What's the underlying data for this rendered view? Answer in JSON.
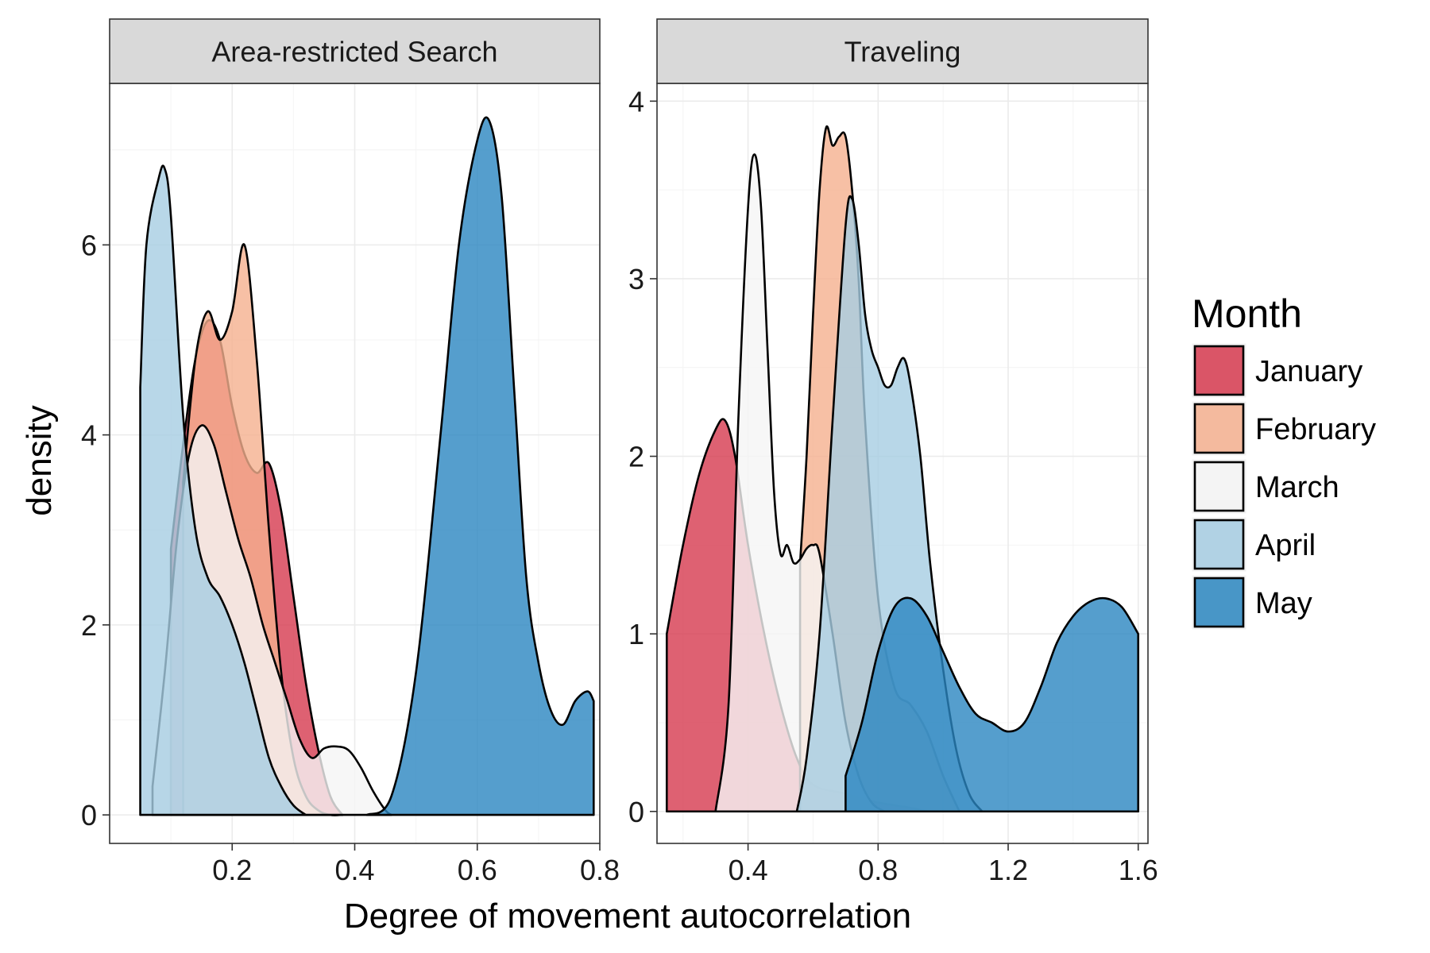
{
  "chart_data": {
    "type": "area",
    "xlabel": "Degree of movement autocorrelation",
    "ylabel": "density",
    "legend": {
      "title": "Month",
      "placement": "right",
      "entries": [
        {
          "name": "January",
          "color": "#d6394f"
        },
        {
          "name": "February",
          "color": "#f5b08f"
        },
        {
          "name": "March",
          "color": "#f5f5f5"
        },
        {
          "name": "April",
          "color": "#a6cde2"
        },
        {
          "name": "May",
          "color": "#2a86c0"
        }
      ]
    },
    "grid": true,
    "panels": [
      {
        "label": "Area-restricted Search",
        "xlim": [
          0.0,
          0.8
        ],
        "ylim": [
          -0.3,
          7.7
        ],
        "xticks": [
          0.2,
          0.4,
          0.6,
          0.8
        ],
        "xtick_labels": [
          "0.2",
          "0.4",
          "0.6",
          "0.8"
        ],
        "yticks": [
          0,
          2,
          4,
          6
        ],
        "ytick_labels": [
          "0",
          "2",
          "4",
          "6"
        ],
        "series": [
          {
            "name": "January",
            "x": [
              0.1,
              0.12,
              0.14,
              0.16,
              0.18,
              0.2,
              0.22,
              0.24,
              0.26,
              0.28,
              0.3,
              0.32,
              0.34,
              0.36,
              0.38
            ],
            "y": [
              2.8,
              3.9,
              4.8,
              5.2,
              5.0,
              4.3,
              3.8,
              3.6,
              3.7,
              3.2,
              2.3,
              1.4,
              0.7,
              0.2,
              0.0
            ]
          },
          {
            "name": "February",
            "x": [
              0.12,
              0.14,
              0.16,
              0.18,
              0.2,
              0.22,
              0.24,
              0.26,
              0.28,
              0.3,
              0.32,
              0.34,
              0.36,
              0.38
            ],
            "y": [
              3.5,
              4.8,
              5.3,
              5.0,
              5.3,
              6.0,
              4.8,
              3.0,
              1.5,
              0.6,
              0.2,
              0.05,
              0.0,
              0.0
            ]
          },
          {
            "name": "March",
            "x": [
              0.07,
              0.09,
              0.11,
              0.13,
              0.15,
              0.17,
              0.19,
              0.21,
              0.23,
              0.25,
              0.27,
              0.29,
              0.31,
              0.33,
              0.35,
              0.37,
              0.39,
              0.41,
              0.43,
              0.45,
              0.46
            ],
            "y": [
              0.3,
              1.5,
              2.9,
              3.8,
              4.1,
              3.9,
              3.4,
              2.9,
              2.5,
              2.0,
              1.6,
              1.2,
              0.8,
              0.6,
              0.7,
              0.72,
              0.68,
              0.5,
              0.25,
              0.05,
              0.0
            ]
          },
          {
            "name": "April",
            "x": [
              0.05,
              0.06,
              0.08,
              0.09,
              0.1,
              0.12,
              0.14,
              0.16,
              0.18,
              0.2,
              0.22,
              0.24,
              0.26,
              0.28,
              0.3,
              0.32
            ],
            "y": [
              4.5,
              6.0,
              6.7,
              6.8,
              6.3,
              4.2,
              3.0,
              2.5,
              2.3,
              2.0,
              1.6,
              1.1,
              0.6,
              0.3,
              0.1,
              0.0
            ]
          },
          {
            "name": "May",
            "x": [
              0.42,
              0.46,
              0.5,
              0.54,
              0.57,
              0.6,
              0.62,
              0.64,
              0.66,
              0.68,
              0.7,
              0.72,
              0.74,
              0.76,
              0.78,
              0.79
            ],
            "y": [
              0.0,
              0.2,
              1.5,
              4.0,
              6.0,
              7.1,
              7.3,
              6.5,
              4.5,
              2.5,
              1.6,
              1.1,
              0.95,
              1.2,
              1.3,
              1.2
            ]
          }
        ]
      },
      {
        "label": "Traveling",
        "xlim": [
          0.12,
          1.63
        ],
        "ylim": [
          -0.18,
          4.1
        ],
        "xticks": [
          0.4,
          0.8,
          1.2,
          1.6
        ],
        "xtick_labels": [
          "0.4",
          "0.8",
          "1.2",
          "1.6"
        ],
        "yticks": [
          0,
          1,
          2,
          3,
          4
        ],
        "ytick_labels": [
          "0",
          "1",
          "2",
          "3",
          "4"
        ],
        "series": [
          {
            "name": "January",
            "x": [
              0.15,
              0.2,
              0.25,
              0.3,
              0.33,
              0.36,
              0.4,
              0.45,
              0.5,
              0.55,
              0.6,
              0.7,
              0.8,
              0.9,
              0.95
            ],
            "y": [
              1.0,
              1.5,
              1.9,
              2.15,
              2.2,
              2.0,
              1.5,
              1.0,
              0.6,
              0.3,
              0.15,
              0.1,
              0.05,
              0.02,
              0.0
            ]
          },
          {
            "name": "February",
            "x": [
              0.56,
              0.58,
              0.6,
              0.62,
              0.64,
              0.66,
              0.68,
              0.7,
              0.72,
              0.74,
              0.76,
              0.8,
              0.85,
              0.9,
              0.95,
              1.0,
              1.05
            ],
            "y": [
              1.4,
              2.0,
              2.8,
              3.5,
              3.85,
              3.75,
              3.8,
              3.8,
              3.5,
              3.0,
              2.2,
              1.2,
              0.7,
              0.6,
              0.45,
              0.2,
              0.0
            ]
          },
          {
            "name": "March",
            "x": [
              0.3,
              0.34,
              0.37,
              0.4,
              0.42,
              0.44,
              0.46,
              0.48,
              0.5,
              0.52,
              0.54,
              0.56,
              0.58,
              0.6,
              0.62,
              0.66,
              0.7,
              0.74,
              0.78,
              0.82
            ],
            "y": [
              0.0,
              0.6,
              2.2,
              3.4,
              3.7,
              3.4,
              2.6,
              1.8,
              1.45,
              1.5,
              1.4,
              1.42,
              1.48,
              1.5,
              1.45,
              1.0,
              0.5,
              0.2,
              0.05,
              0.0
            ]
          },
          {
            "name": "April",
            "x": [
              0.55,
              0.58,
              0.62,
              0.66,
              0.7,
              0.72,
              0.74,
              0.76,
              0.78,
              0.8,
              0.82,
              0.84,
              0.86,
              0.88,
              0.9,
              0.93,
              0.96,
              1.0,
              1.04,
              1.08,
              1.12
            ],
            "y": [
              0.0,
              0.3,
              1.0,
              2.2,
              3.3,
              3.45,
              3.2,
              2.8,
              2.6,
              2.5,
              2.4,
              2.4,
              2.5,
              2.55,
              2.4,
              2.0,
              1.4,
              0.8,
              0.35,
              0.1,
              0.0
            ]
          },
          {
            "name": "May",
            "x": [
              0.7,
              0.75,
              0.8,
              0.85,
              0.9,
              0.95,
              1.0,
              1.05,
              1.1,
              1.15,
              1.2,
              1.25,
              1.3,
              1.35,
              1.4,
              1.45,
              1.5,
              1.55,
              1.6
            ],
            "y": [
              0.2,
              0.5,
              0.9,
              1.15,
              1.2,
              1.1,
              0.9,
              0.7,
              0.55,
              0.5,
              0.45,
              0.5,
              0.7,
              0.95,
              1.1,
              1.18,
              1.2,
              1.15,
              1.0
            ]
          }
        ]
      }
    ]
  }
}
